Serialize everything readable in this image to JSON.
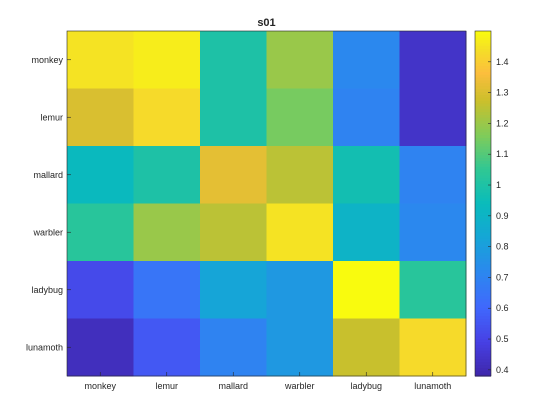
{
  "chart_data": {
    "type": "heatmap",
    "title": "s01",
    "x_categories": [
      "monkey",
      "lemur",
      "mallard",
      "warbler",
      "ladybug",
      "lunamoth"
    ],
    "y_categories": [
      "monkey",
      "lemur",
      "mallard",
      "warbler",
      "ladybug",
      "lunamoth"
    ],
    "values": [
      [
        1.45,
        1.47,
        1.0,
        1.2,
        0.72,
        0.44
      ],
      [
        1.3,
        1.43,
        1.0,
        1.15,
        0.7,
        0.44
      ],
      [
        0.93,
        1.0,
        1.32,
        1.25,
        0.97,
        0.7
      ],
      [
        1.03,
        1.2,
        1.25,
        1.45,
        0.9,
        0.72
      ],
      [
        0.52,
        0.65,
        0.83,
        0.78,
        1.5,
        1.03
      ],
      [
        0.42,
        0.56,
        0.7,
        0.78,
        1.27,
        1.43
      ]
    ],
    "colorbar": {
      "limits": [
        0.38,
        1.5
      ],
      "ticks": [
        "0.4",
        "0.5",
        "0.6",
        "0.7",
        "0.8",
        "0.9",
        "1",
        "1.1",
        "1.2",
        "1.3",
        "1.4"
      ],
      "colormap": "parula"
    }
  }
}
